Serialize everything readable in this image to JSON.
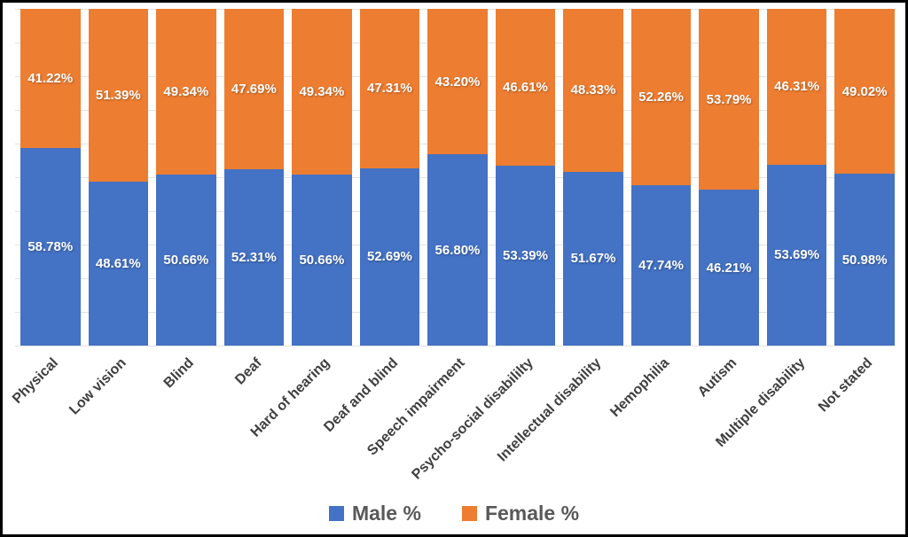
{
  "chart_data": {
    "type": "bar",
    "variant": "stacked-100-percent-column",
    "categories": [
      "Physical",
      "Low vision",
      "Blind",
      "Deaf",
      "Hard of hearing",
      "Deaf and blind",
      "Speech impairment",
      "Psycho-social disabililty",
      "Intellectual disability",
      "Hemophilia",
      "Autism",
      "Multiple disability",
      "Not stated"
    ],
    "series": [
      {
        "name": "Male %",
        "color": "#4472C4",
        "values": [
          58.78,
          48.61,
          50.66,
          52.31,
          50.66,
          52.69,
          56.8,
          53.39,
          51.67,
          47.74,
          46.21,
          53.69,
          50.98
        ]
      },
      {
        "name": "Female %",
        "color": "#ED7D31",
        "values": [
          41.22,
          51.39,
          49.34,
          47.69,
          49.34,
          47.31,
          43.2,
          46.61,
          48.33,
          52.26,
          53.79,
          46.31,
          49.02
        ]
      }
    ],
    "data_labels": {
      "male": [
        "58.78%",
        "48.61%",
        "50.66%",
        "52.31%",
        "50.66%",
        "52.69%",
        "56.80%",
        "53.39%",
        "51.67%",
        "47.74%",
        "46.21%",
        "53.69%",
        "50.98%"
      ],
      "female": [
        "41.22%",
        "51.39%",
        "49.34%",
        "47.69%",
        "49.34%",
        "47.31%",
        "43.20%",
        "46.61%",
        "48.33%",
        "52.26%",
        "53.79%",
        "46.31%",
        "49.02%"
      ]
    },
    "title": "",
    "xlabel": "",
    "ylabel": "",
    "ylim": [
      0,
      100
    ],
    "grid": true,
    "gridline_interval": 10,
    "legend_position": "bottom",
    "legend_entries": [
      "Male %",
      "Female %"
    ]
  },
  "colors": {
    "male": "#4472C4",
    "female": "#ED7D31",
    "data_label_text": "#FFFFFF",
    "axis_label_text": "#404040",
    "legend_text": "#595959",
    "gridline": "#E2E2E2",
    "frame_border": "#000000",
    "background": "#FFFFFF"
  }
}
